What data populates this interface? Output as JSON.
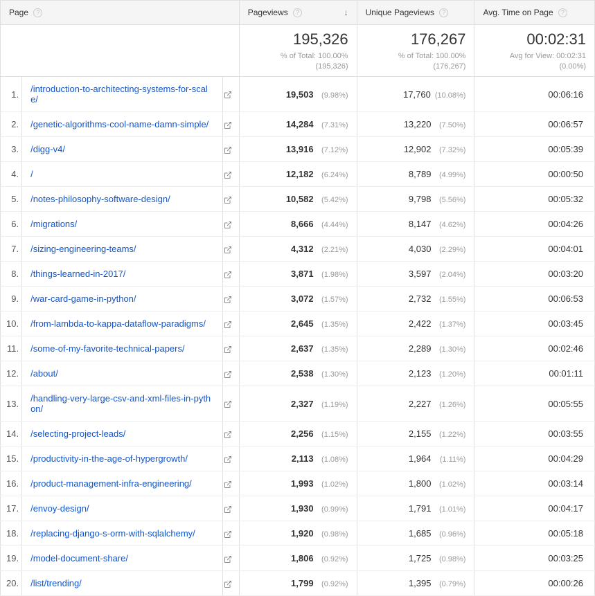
{
  "columns": {
    "page": "Page",
    "pageviews": "Pageviews",
    "unique_pageviews": "Unique Pageviews",
    "avg_time": "Avg. Time on Page"
  },
  "summary": {
    "pageviews_total": "195,326",
    "pageviews_sub": "% of Total: 100.00% (195,326)",
    "unique_total": "176,267",
    "unique_sub": "% of Total: 100.00% (176,267)",
    "avg_time_total": "00:02:31",
    "avg_time_sub": "Avg for View: 00:02:31 (0.00%)"
  },
  "rows": [
    {
      "idx": "1.",
      "page": "/introduction-to-architecting-systems-for-scale/",
      "pv": "19,503",
      "pvp": "(9.98%)",
      "uv": "17,760",
      "uvp": "(10.08%)",
      "time": "00:06:16"
    },
    {
      "idx": "2.",
      "page": "/genetic-algorithms-cool-name-damn-simple/",
      "pv": "14,284",
      "pvp": "(7.31%)",
      "uv": "13,220",
      "uvp": "(7.50%)",
      "time": "00:06:57"
    },
    {
      "idx": "3.",
      "page": "/digg-v4/",
      "pv": "13,916",
      "pvp": "(7.12%)",
      "uv": "12,902",
      "uvp": "(7.32%)",
      "time": "00:05:39"
    },
    {
      "idx": "4.",
      "page": "/",
      "pv": "12,182",
      "pvp": "(6.24%)",
      "uv": "8,789",
      "uvp": "(4.99%)",
      "time": "00:00:50"
    },
    {
      "idx": "5.",
      "page": "/notes-philosophy-software-design/",
      "pv": "10,582",
      "pvp": "(5.42%)",
      "uv": "9,798",
      "uvp": "(5.56%)",
      "time": "00:05:32"
    },
    {
      "idx": "6.",
      "page": "/migrations/",
      "pv": "8,666",
      "pvp": "(4.44%)",
      "uv": "8,147",
      "uvp": "(4.62%)",
      "time": "00:04:26"
    },
    {
      "idx": "7.",
      "page": "/sizing-engineering-teams/",
      "pv": "4,312",
      "pvp": "(2.21%)",
      "uv": "4,030",
      "uvp": "(2.29%)",
      "time": "00:04:01"
    },
    {
      "idx": "8.",
      "page": "/things-learned-in-2017/",
      "pv": "3,871",
      "pvp": "(1.98%)",
      "uv": "3,597",
      "uvp": "(2.04%)",
      "time": "00:03:20"
    },
    {
      "idx": "9.",
      "page": "/war-card-game-in-python/",
      "pv": "3,072",
      "pvp": "(1.57%)",
      "uv": "2,732",
      "uvp": "(1.55%)",
      "time": "00:06:53"
    },
    {
      "idx": "10.",
      "page": "/from-lambda-to-kappa-dataflow-paradigms/",
      "pv": "2,645",
      "pvp": "(1.35%)",
      "uv": "2,422",
      "uvp": "(1.37%)",
      "time": "00:03:45"
    },
    {
      "idx": "11.",
      "page": "/some-of-my-favorite-technical-papers/",
      "pv": "2,637",
      "pvp": "(1.35%)",
      "uv": "2,289",
      "uvp": "(1.30%)",
      "time": "00:02:46"
    },
    {
      "idx": "12.",
      "page": "/about/",
      "pv": "2,538",
      "pvp": "(1.30%)",
      "uv": "2,123",
      "uvp": "(1.20%)",
      "time": "00:01:11"
    },
    {
      "idx": "13.",
      "page": "/handling-very-large-csv-and-xml-files-in-python/",
      "pv": "2,327",
      "pvp": "(1.19%)",
      "uv": "2,227",
      "uvp": "(1.26%)",
      "time": "00:05:55"
    },
    {
      "idx": "14.",
      "page": "/selecting-project-leads/",
      "pv": "2,256",
      "pvp": "(1.15%)",
      "uv": "2,155",
      "uvp": "(1.22%)",
      "time": "00:03:55"
    },
    {
      "idx": "15.",
      "page": "/productivity-in-the-age-of-hypergrowth/",
      "pv": "2,113",
      "pvp": "(1.08%)",
      "uv": "1,964",
      "uvp": "(1.11%)",
      "time": "00:04:29"
    },
    {
      "idx": "16.",
      "page": "/product-management-infra-engineering/",
      "pv": "1,993",
      "pvp": "(1.02%)",
      "uv": "1,800",
      "uvp": "(1.02%)",
      "time": "00:03:14"
    },
    {
      "idx": "17.",
      "page": "/envoy-design/",
      "pv": "1,930",
      "pvp": "(0.99%)",
      "uv": "1,791",
      "uvp": "(1.01%)",
      "time": "00:04:17"
    },
    {
      "idx": "18.",
      "page": "/replacing-django-s-orm-with-sqlalchemy/",
      "pv": "1,920",
      "pvp": "(0.98%)",
      "uv": "1,685",
      "uvp": "(0.96%)",
      "time": "00:05:18"
    },
    {
      "idx": "19.",
      "page": "/model-document-share/",
      "pv": "1,806",
      "pvp": "(0.92%)",
      "uv": "1,725",
      "uvp": "(0.98%)",
      "time": "00:03:25"
    },
    {
      "idx": "20.",
      "page": "/list/trending/",
      "pv": "1,799",
      "pvp": "(0.92%)",
      "uv": "1,395",
      "uvp": "(0.79%)",
      "time": "00:00:26"
    }
  ]
}
